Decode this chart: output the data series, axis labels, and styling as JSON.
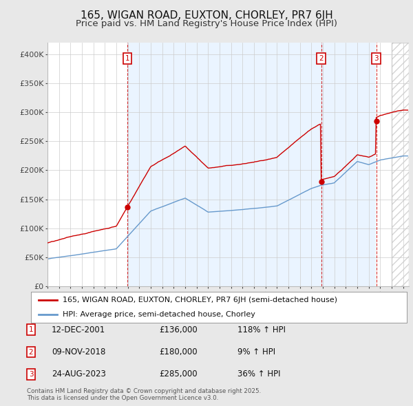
{
  "title": "165, WIGAN ROAD, EUXTON, CHORLEY, PR7 6JH",
  "subtitle": "Price paid vs. HM Land Registry's House Price Index (HPI)",
  "ylabel_ticks": [
    "£0",
    "£50K",
    "£100K",
    "£150K",
    "£200K",
    "£250K",
    "£300K",
    "£350K",
    "£400K"
  ],
  "ytick_values": [
    0,
    50000,
    100000,
    150000,
    200000,
    250000,
    300000,
    350000,
    400000
  ],
  "ylim": [
    0,
    420000
  ],
  "xlim_start": 1995.0,
  "xlim_end": 2026.5,
  "sale_dates": [
    2001.95,
    2018.86,
    2023.65
  ],
  "sale_prices": [
    136000,
    180000,
    285000
  ],
  "sale_labels": [
    "1",
    "2",
    "3"
  ],
  "sale_info": [
    {
      "label": "1",
      "date": "12-DEC-2001",
      "price": "£136,000",
      "hpi": "118% ↑ HPI"
    },
    {
      "label": "2",
      "date": "09-NOV-2018",
      "price": "£180,000",
      "hpi": "9% ↑ HPI"
    },
    {
      "label": "3",
      "date": "24-AUG-2023",
      "price": "£285,000",
      "hpi": "36% ↑ HPI"
    }
  ],
  "red_color": "#cc0000",
  "blue_color": "#6699cc",
  "shade_color": "#ddeeff",
  "legend_label_red": "165, WIGAN ROAD, EUXTON, CHORLEY, PR7 6JH (semi-detached house)",
  "legend_label_blue": "HPI: Average price, semi-detached house, Chorley",
  "footer": "Contains HM Land Registry data © Crown copyright and database right 2025.\nThis data is licensed under the Open Government Licence v3.0.",
  "background_color": "#e8e8e8",
  "plot_bg_color": "#ffffff",
  "grid_color": "#cccccc",
  "title_fontsize": 11,
  "subtitle_fontsize": 9.5
}
